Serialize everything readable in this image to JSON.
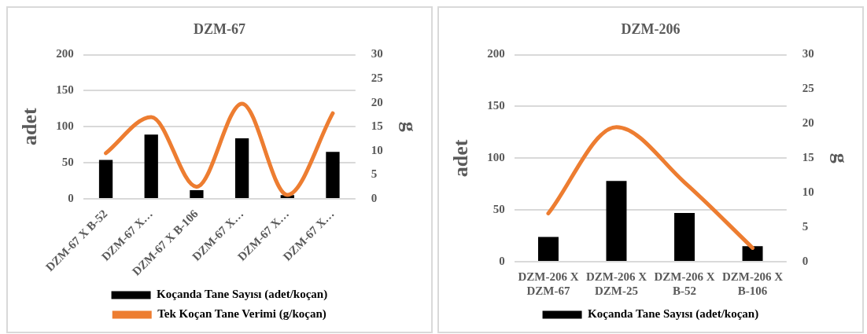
{
  "chart_data": [
    {
      "type": "bar",
      "title": "DZM-67",
      "ylabel": "adet",
      "y2label": "g",
      "categories": [
        "DZM-67 X B-52",
        "DZM-67 X…",
        "DZM-67 X B-106",
        "DZM-67 X…",
        "DZM-67 X…",
        "DZM-67 X…"
      ],
      "series": [
        {
          "name": "Koçanda Tane Sayısı (adet/koçan)",
          "color": "#000000",
          "values": [
            54,
            89,
            12,
            84,
            5,
            65
          ]
        },
        {
          "name": "Tek Koçan Tane Verimi (g/koçan)",
          "type": "line",
          "axis": "y2",
          "color": "#ed7d31",
          "values": [
            9.5,
            17,
            2.5,
            19.8,
            0.8,
            17.8
          ]
        }
      ],
      "ylim": [
        0,
        200
      ],
      "yticks": [
        0,
        50,
        100,
        150,
        200
      ],
      "y2lim": [
        0,
        30
      ],
      "y2ticks": [
        0,
        5,
        10,
        15,
        20,
        25,
        30
      ],
      "grid": "y",
      "legend": "bottom",
      "marker": "none"
    },
    {
      "type": "bar",
      "title": "DZM-206",
      "ylabel": "adet",
      "y2label": "g",
      "categories": [
        "DZM-206 X DZM-67",
        "DZM-206 X DZM-25",
        "DZM-206 X B-52",
        "DZM-206 X B-106"
      ],
      "series": [
        {
          "name": "Koçanda Tane Sayısı (adet/koçan)",
          "color": "#000000",
          "values": [
            24,
            78,
            47,
            15
          ]
        },
        {
          "type": "line",
          "axis": "y2",
          "color": "#ed7d31",
          "values": [
            7,
            19.5,
            11.5,
            2
          ]
        }
      ],
      "ylim": [
        0,
        200
      ],
      "yticks": [
        0,
        50,
        100,
        150,
        200
      ],
      "y2lim": [
        0,
        30
      ],
      "y2ticks": [
        0,
        5,
        10,
        15,
        20,
        25,
        30
      ],
      "grid": "y",
      "legend": "bottom",
      "marker": "none"
    }
  ]
}
